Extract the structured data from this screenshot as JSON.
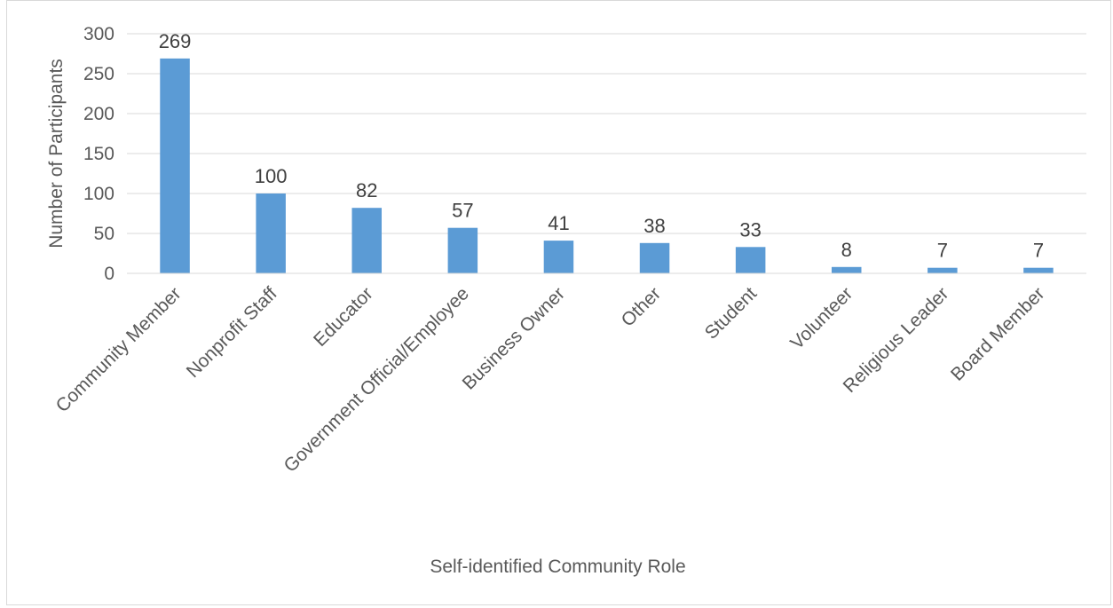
{
  "chart_data": {
    "type": "bar",
    "title": "",
    "xlabel": "Self-identified Community Role",
    "ylabel": "Number of Participants",
    "categories": [
      "Community Member",
      "Nonprofit Staff",
      "Educator",
      "Government Official/Employee",
      "Business Owner",
      "Other",
      "Student",
      "Volunteer",
      "Religious Leader",
      "Board Member"
    ],
    "values": [
      269,
      100,
      82,
      57,
      41,
      38,
      33,
      8,
      7,
      7
    ],
    "data_labels": [
      "269",
      "100",
      "82",
      "57",
      "41",
      "38",
      "33",
      "8",
      "7",
      "7"
    ],
    "ylim": [
      0,
      300
    ],
    "yticks": [
      0,
      50,
      100,
      150,
      200,
      250,
      300
    ],
    "ytick_labels": [
      "0",
      "50",
      "100",
      "150",
      "200",
      "250",
      "300"
    ],
    "grid": true,
    "legend": "none",
    "colors": {
      "bar": "#5b9bd5",
      "grid": "#d9d9d9",
      "text": "#595959"
    }
  }
}
